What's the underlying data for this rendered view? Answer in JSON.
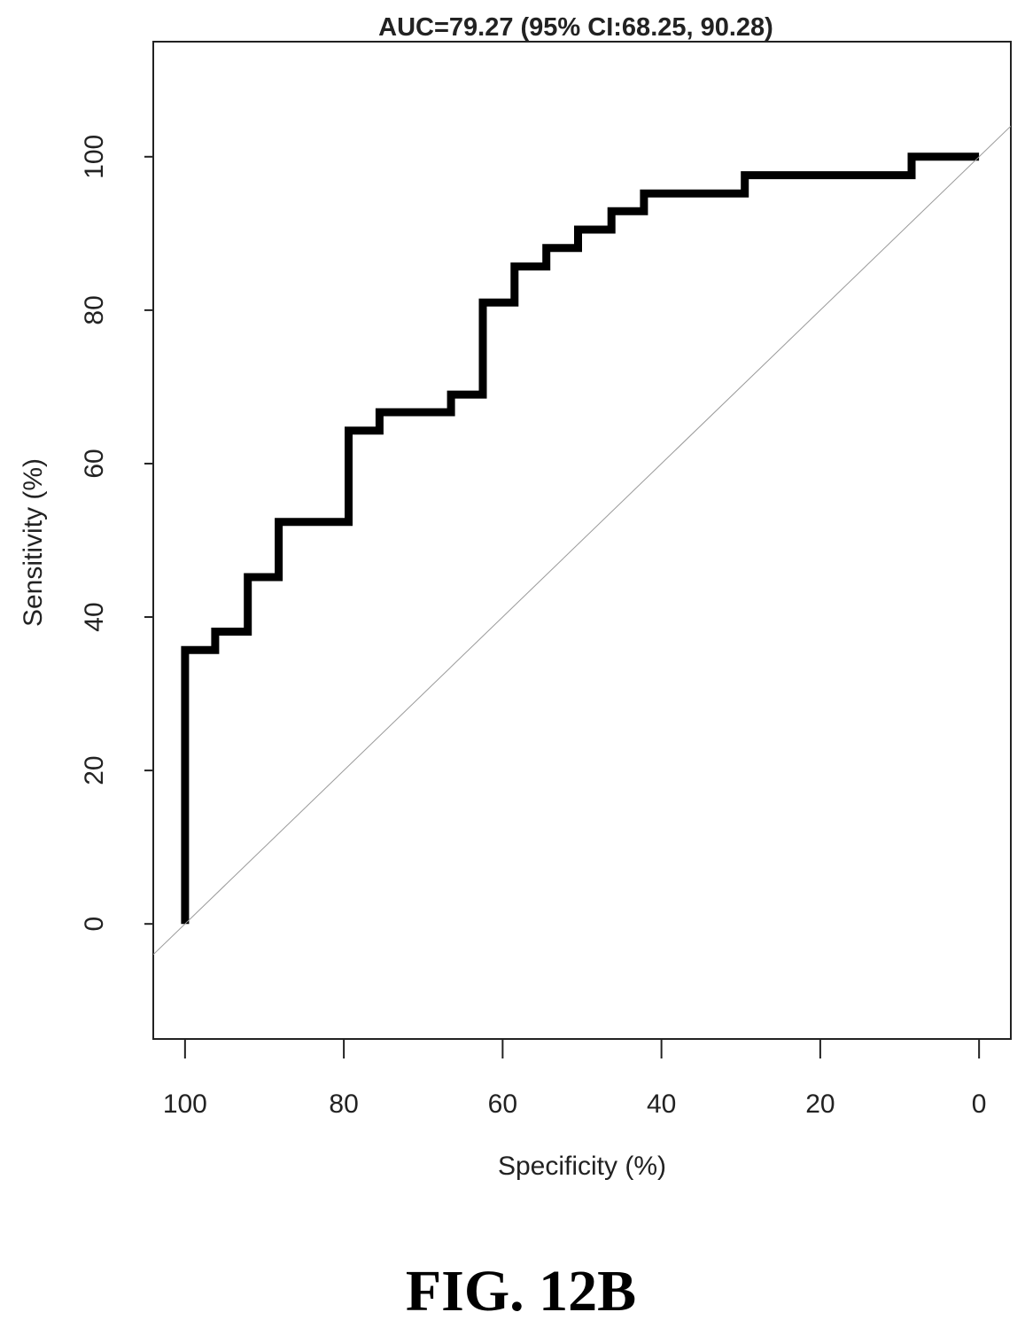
{
  "chart_data": {
    "type": "line",
    "title": "AUC=79.27 (95% CI:68.25, 90.28)",
    "xlabel": "Specificity (%)",
    "ylabel": "Sensitivity (%)",
    "xlim": [
      104,
      -4
    ],
    "ylim": [
      -15,
      115
    ],
    "x_reversed": true,
    "grid": false,
    "legend": "none",
    "x_ticks": [
      100,
      80,
      60,
      40,
      20,
      0
    ],
    "y_ticks": [
      0,
      20,
      40,
      60,
      80,
      100
    ],
    "series": [
      {
        "color": "#000000",
        "style": "step",
        "points": [
          [
            100,
            0
          ],
          [
            100,
            35.7
          ],
          [
            96.2,
            35.7
          ],
          [
            96.2,
            38.1
          ],
          [
            92.1,
            38.1
          ],
          [
            92.1,
            45.2
          ],
          [
            88.2,
            45.2
          ],
          [
            88.2,
            52.4
          ],
          [
            79.4,
            52.4
          ],
          [
            79.4,
            64.3
          ],
          [
            75.5,
            64.3
          ],
          [
            75.5,
            66.7
          ],
          [
            66.5,
            66.7
          ],
          [
            66.5,
            69.0
          ],
          [
            62.5,
            69.0
          ],
          [
            62.5,
            81.0
          ],
          [
            58.5,
            81.0
          ],
          [
            58.5,
            85.7
          ],
          [
            54.5,
            85.7
          ],
          [
            54.5,
            88.1
          ],
          [
            50.5,
            88.1
          ],
          [
            50.5,
            90.5
          ],
          [
            46.3,
            90.5
          ],
          [
            46.3,
            92.9
          ],
          [
            42.2,
            92.9
          ],
          [
            42.2,
            95.2
          ],
          [
            29.5,
            95.2
          ],
          [
            29.5,
            97.6
          ],
          [
            8.5,
            97.6
          ],
          [
            8.5,
            100
          ],
          [
            0,
            100
          ]
        ]
      },
      {
        "color": "#999999",
        "style": "reference",
        "points": [
          [
            104,
            -4
          ],
          [
            -4,
            104
          ]
        ]
      }
    ]
  },
  "figure_caption": "FIG. 12B"
}
